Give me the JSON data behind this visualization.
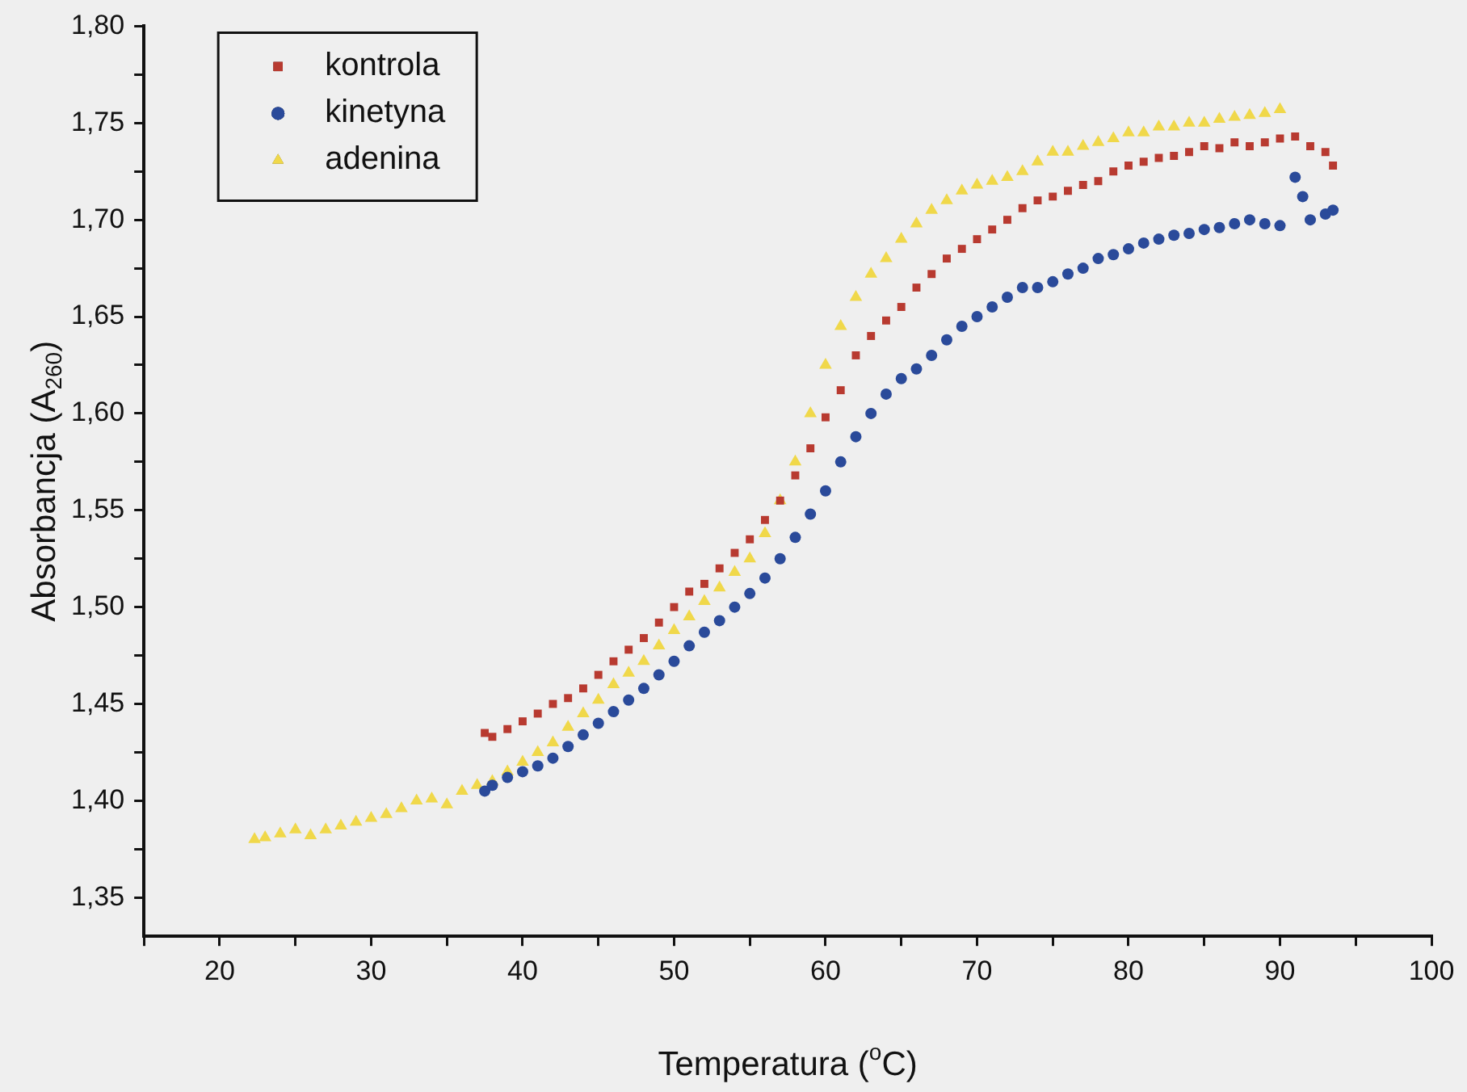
{
  "chart_data": {
    "type": "scatter",
    "xlabel": "Temperatura ($^{o}$C)",
    "ylabel": "Absorbancja (A$_{260}$)",
    "xlim": [
      15,
      100
    ],
    "ylim": [
      1.33,
      1.8
    ],
    "xticks": [
      {
        "value": 15,
        "label": null
      },
      {
        "value": 20,
        "label": "20"
      },
      {
        "value": 25,
        "label": null
      },
      {
        "value": 30,
        "label": "30"
      },
      {
        "value": 35,
        "label": null
      },
      {
        "value": 40,
        "label": "40"
      },
      {
        "value": 45,
        "label": null
      },
      {
        "value": 50,
        "label": "50"
      },
      {
        "value": 55,
        "label": null
      },
      {
        "value": 60,
        "label": "60"
      },
      {
        "value": 65,
        "label": null
      },
      {
        "value": 70,
        "label": "70"
      },
      {
        "value": 75,
        "label": null
      },
      {
        "value": 80,
        "label": "80"
      },
      {
        "value": 85,
        "label": null
      },
      {
        "value": 90,
        "label": "90"
      },
      {
        "value": 95,
        "label": null
      },
      {
        "value": 100,
        "label": "100"
      }
    ],
    "yticks": [
      {
        "value": 1.35,
        "label": "1,35"
      },
      {
        "value": 1.375,
        "label": null
      },
      {
        "value": 1.4,
        "label": "1,40"
      },
      {
        "value": 1.425,
        "label": null
      },
      {
        "value": 1.45,
        "label": "1,45"
      },
      {
        "value": 1.475,
        "label": null
      },
      {
        "value": 1.5,
        "label": "1,50"
      },
      {
        "value": 1.525,
        "label": null
      },
      {
        "value": 1.55,
        "label": "1,55"
      },
      {
        "value": 1.575,
        "label": null
      },
      {
        "value": 1.6,
        "label": "1,60"
      },
      {
        "value": 1.625,
        "label": null
      },
      {
        "value": 1.65,
        "label": "1,65"
      },
      {
        "value": 1.675,
        "label": null
      },
      {
        "value": 1.7,
        "label": "1,70"
      },
      {
        "value": 1.725,
        "label": null
      },
      {
        "value": 1.75,
        "label": "1,75"
      },
      {
        "value": 1.775,
        "label": null
      },
      {
        "value": 1.8,
        "label": "1,80"
      }
    ],
    "grid": false,
    "legend": "top left",
    "series": [
      {
        "name": "kontrola",
        "color": "#b83a30",
        "marker": "square",
        "x": [
          37.5,
          38,
          39,
          40,
          41,
          42,
          43,
          44,
          45,
          46,
          47,
          48,
          49,
          50,
          51,
          52,
          53,
          54,
          55,
          56,
          57,
          58,
          59,
          60,
          61,
          62,
          63,
          64,
          65,
          66,
          67,
          68,
          69,
          70,
          71,
          72,
          73,
          74,
          75,
          76,
          77,
          78,
          79,
          80,
          81,
          82,
          83,
          84,
          85,
          86,
          87,
          88,
          89,
          90,
          91,
          92,
          93,
          93.5
        ],
        "values": [
          1.435,
          1.433,
          1.437,
          1.441,
          1.445,
          1.45,
          1.453,
          1.458,
          1.465,
          1.472,
          1.478,
          1.484,
          1.492,
          1.5,
          1.508,
          1.512,
          1.52,
          1.528,
          1.535,
          1.545,
          1.555,
          1.568,
          1.582,
          1.598,
          1.612,
          1.63,
          1.64,
          1.648,
          1.655,
          1.665,
          1.672,
          1.68,
          1.685,
          1.69,
          1.695,
          1.7,
          1.706,
          1.71,
          1.712,
          1.715,
          1.718,
          1.72,
          1.725,
          1.728,
          1.73,
          1.732,
          1.733,
          1.735,
          1.738,
          1.737,
          1.74,
          1.738,
          1.74,
          1.742,
          1.743,
          1.738,
          1.735,
          1.728
        ]
      },
      {
        "name": "kinetyna",
        "color": "#2a4a9a",
        "marker": "circle",
        "x": [
          37.5,
          38,
          39,
          40,
          41,
          42,
          43,
          44,
          45,
          46,
          47,
          48,
          49,
          50,
          51,
          52,
          53,
          54,
          55,
          56,
          57,
          58,
          59,
          60,
          61,
          62,
          63,
          64,
          65,
          66,
          67,
          68,
          69,
          70,
          71,
          72,
          73,
          74,
          75,
          76,
          77,
          78,
          79,
          80,
          81,
          82,
          83,
          84,
          85,
          86,
          87,
          88,
          89,
          90,
          91,
          91.5,
          92,
          93,
          93.5
        ],
        "values": [
          1.405,
          1.408,
          1.412,
          1.415,
          1.418,
          1.422,
          1.428,
          1.434,
          1.44,
          1.446,
          1.452,
          1.458,
          1.465,
          1.472,
          1.48,
          1.487,
          1.493,
          1.5,
          1.507,
          1.515,
          1.525,
          1.536,
          1.548,
          1.56,
          1.575,
          1.588,
          1.6,
          1.61,
          1.618,
          1.623,
          1.63,
          1.638,
          1.645,
          1.65,
          1.655,
          1.66,
          1.665,
          1.665,
          1.668,
          1.672,
          1.675,
          1.68,
          1.682,
          1.685,
          1.688,
          1.69,
          1.692,
          1.693,
          1.695,
          1.696,
          1.698,
          1.7,
          1.698,
          1.697,
          1.722,
          1.712,
          1.7,
          1.703,
          1.705
        ]
      },
      {
        "name": "adenina",
        "color": "#f0d84a",
        "marker": "triangle",
        "x": [
          22.3,
          23,
          24,
          25,
          26,
          27,
          28,
          29,
          30,
          31,
          32,
          33,
          34,
          35,
          36,
          37,
          38,
          39,
          40,
          41,
          42,
          43,
          44,
          45,
          46,
          47,
          48,
          49,
          50,
          51,
          52,
          53,
          54,
          55,
          56,
          57,
          58,
          59,
          60,
          61,
          62,
          63,
          64,
          65,
          66,
          67,
          68,
          69,
          70,
          71,
          72,
          73,
          74,
          75,
          76,
          77,
          78,
          79,
          80,
          81,
          82,
          83,
          84,
          85,
          86,
          87,
          88,
          89,
          90
        ],
        "values": [
          1.38,
          1.381,
          1.383,
          1.385,
          1.382,
          1.385,
          1.387,
          1.389,
          1.391,
          1.393,
          1.396,
          1.4,
          1.401,
          1.398,
          1.405,
          1.408,
          1.41,
          1.415,
          1.42,
          1.425,
          1.43,
          1.438,
          1.445,
          1.452,
          1.46,
          1.466,
          1.472,
          1.48,
          1.488,
          1.495,
          1.503,
          1.51,
          1.518,
          1.525,
          1.538,
          1.555,
          1.575,
          1.6,
          1.625,
          1.645,
          1.66,
          1.672,
          1.68,
          1.69,
          1.698,
          1.705,
          1.71,
          1.715,
          1.718,
          1.72,
          1.722,
          1.725,
          1.73,
          1.735,
          1.735,
          1.738,
          1.74,
          1.742,
          1.745,
          1.745,
          1.748,
          1.748,
          1.75,
          1.75,
          1.752,
          1.753,
          1.754,
          1.755,
          1.757
        ]
      }
    ]
  }
}
